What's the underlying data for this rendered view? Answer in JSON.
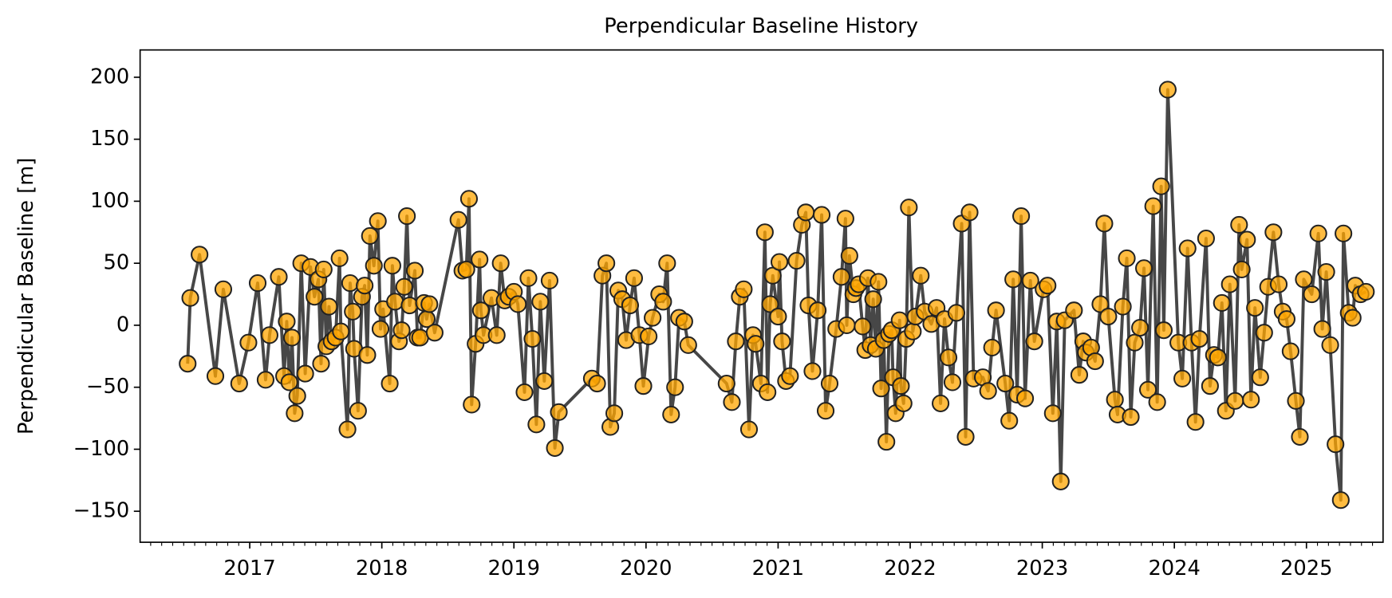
{
  "chart_data": {
    "type": "line",
    "title": "Perpendicular Baseline History",
    "ylabel": "Perpendicular Baseline [m]",
    "line_color": "#333333",
    "marker_color": "#ffa500",
    "marker_edge_color": "#222222",
    "xlim": [
      2016.17,
      2025.58
    ],
    "xticks": [
      2017,
      2018,
      2019,
      2020,
      2021,
      2022,
      2023,
      2024,
      2025
    ],
    "ylim": [
      -175,
      222
    ],
    "yticks": [
      {
        "value": -150,
        "label": "−150"
      },
      {
        "value": -100,
        "label": "−100"
      },
      {
        "value": -50,
        "label": "−50"
      },
      0,
      50,
      100,
      150,
      200
    ],
    "grid": false,
    "x": [
      2016.53,
      2016.55,
      2016.62,
      2016.74,
      2016.8,
      2016.92,
      2016.99,
      2017.06,
      2017.12,
      2017.15,
      2017.22,
      2017.26,
      2017.28,
      2017.3,
      2017.32,
      2017.34,
      2017.36,
      2017.39,
      2017.42,
      2017.46,
      2017.49,
      2017.52,
      2017.54,
      2017.56,
      2017.58,
      2017.6,
      2017.62,
      2017.65,
      2017.68,
      2017.69,
      2017.74,
      2017.76,
      2017.78,
      2017.79,
      2017.82,
      2017.85,
      2017.87,
      2017.89,
      2017.91,
      2017.94,
      2017.97,
      2017.99,
      2018.01,
      2018.06,
      2018.08,
      2018.1,
      2018.13,
      2018.15,
      2018.17,
      2018.19,
      2018.21,
      2018.25,
      2018.27,
      2018.29,
      2018.32,
      2018.34,
      2018.36,
      2018.4,
      2018.58,
      2018.61,
      2018.64,
      2018.66,
      2018.68,
      2018.71,
      2018.74,
      2018.75,
      2018.77,
      2018.83,
      2018.87,
      2018.9,
      2018.93,
      2018.96,
      2019.0,
      2019.03,
      2019.08,
      2019.11,
      2019.14,
      2019.17,
      2019.2,
      2019.23,
      2019.27,
      2019.31,
      2019.34,
      2019.59,
      2019.63,
      2019.67,
      2019.7,
      2019.73,
      2019.76,
      2019.79,
      2019.82,
      2019.85,
      2019.88,
      2019.91,
      2019.95,
      2019.98,
      2020.02,
      2020.05,
      2020.1,
      2020.13,
      2020.16,
      2020.19,
      2020.22,
      2020.25,
      2020.29,
      2020.32,
      2020.61,
      2020.65,
      2020.68,
      2020.71,
      2020.74,
      2020.78,
      2020.81,
      2020.83,
      2020.87,
      2020.9,
      2020.92,
      2020.94,
      2020.96,
      2021.0,
      2021.01,
      2021.03,
      2021.06,
      2021.09,
      2021.14,
      2021.18,
      2021.21,
      2021.23,
      2021.26,
      2021.3,
      2021.33,
      2021.36,
      2021.39,
      2021.44,
      2021.48,
      2021.51,
      2021.52,
      2021.54,
      2021.57,
      2021.59,
      2021.61,
      2021.64,
      2021.66,
      2021.68,
      2021.7,
      2021.72,
      2021.74,
      2021.76,
      2021.78,
      2021.8,
      2021.82,
      2021.84,
      2021.86,
      2021.87,
      2021.89,
      2021.92,
      2021.93,
      2021.95,
      2021.97,
      2021.99,
      2022.02,
      2022.04,
      2022.08,
      2022.11,
      2022.16,
      2022.2,
      2022.23,
      2022.26,
      2022.29,
      2022.32,
      2022.35,
      2022.39,
      2022.42,
      2022.45,
      2022.48,
      2022.55,
      2022.59,
      2022.62,
      2022.65,
      2022.72,
      2022.75,
      2022.78,
      2022.81,
      2022.84,
      2022.87,
      2022.91,
      2022.94,
      2023.01,
      2023.04,
      2023.08,
      2023.11,
      2023.14,
      2023.17,
      2023.24,
      2023.28,
      2023.31,
      2023.33,
      2023.37,
      2023.4,
      2023.44,
      2023.47,
      2023.5,
      2023.55,
      2023.57,
      2023.61,
      2023.64,
      2023.67,
      2023.7,
      2023.74,
      2023.77,
      2023.8,
      2023.84,
      2023.87,
      2023.9,
      2023.92,
      2023.95,
      2024.03,
      2024.06,
      2024.1,
      2024.13,
      2024.16,
      2024.19,
      2024.24,
      2024.27,
      2024.3,
      2024.33,
      2024.36,
      2024.39,
      2024.42,
      2024.46,
      2024.49,
      2024.51,
      2024.55,
      2024.58,
      2024.61,
      2024.65,
      2024.68,
      2024.71,
      2024.75,
      2024.79,
      2024.82,
      2024.85,
      2024.88,
      2024.92,
      2024.95,
      2024.98,
      2025.04,
      2025.09,
      2025.12,
      2025.15,
      2025.18,
      2025.22,
      2025.26,
      2025.28,
      2025.32,
      2025.35,
      2025.37,
      2025.41,
      2025.45
    ],
    "values": [
      -31,
      22,
      57,
      -41,
      29,
      -47,
      -14,
      34,
      -44,
      -8,
      39,
      -41,
      3,
      -46,
      -10,
      -71,
      -57,
      50,
      -39,
      47,
      23,
      37,
      -31,
      45,
      -17,
      15,
      -13,
      -10,
      54,
      -5,
      -84,
      34,
      11,
      -19,
      -69,
      23,
      32,
      -24,
      72,
      48,
      84,
      -3,
      13,
      -47,
      48,
      19,
      -13,
      -4,
      31,
      88,
      16,
      44,
      -10,
      -10,
      18,
      5,
      17,
      -6,
      85,
      44,
      45,
      102,
      -64,
      -15,
      53,
      12,
      -8,
      22,
      -8,
      50,
      20,
      23,
      27,
      17,
      -54,
      38,
      -11,
      -80,
      19,
      -45,
      36,
      -99,
      -70,
      -43,
      -47,
      40,
      50,
      -82,
      -71,
      28,
      21,
      -12,
      16,
      38,
      -8,
      -49,
      -9,
      6,
      25,
      19,
      50,
      -72,
      -50,
      6,
      3,
      -16,
      -47,
      -62,
      -13,
      23,
      29,
      -84,
      -8,
      -15,
      -47,
      75,
      -54,
      17,
      40,
      7,
      51,
      -13,
      -45,
      -41,
      52,
      81,
      91,
      16,
      -37,
      12,
      89,
      -69,
      -47,
      -3,
      39,
      86,
      0,
      56,
      25,
      30,
      33,
      -1,
      -20,
      38,
      -16,
      21,
      -19,
      35,
      -51,
      -12,
      -94,
      -7,
      -4,
      -42,
      -71,
      4,
      -49,
      -63,
      -11,
      95,
      -5,
      7,
      40,
      11,
      1,
      14,
      -63,
      5,
      -26,
      -46,
      10,
      82,
      -90,
      91,
      -43,
      -42,
      -53,
      -18,
      12,
      -47,
      -77,
      37,
      -56,
      88,
      -59,
      36,
      -13,
      29,
      32,
      -71,
      3,
      -126,
      4,
      12,
      -40,
      -13,
      -22,
      -18,
      -29,
      17,
      82,
      7,
      -60,
      -72,
      15,
      54,
      -74,
      -14,
      -2,
      46,
      -52,
      96,
      -62,
      112,
      -4,
      190,
      -14,
      -43,
      62,
      -14,
      -78,
      -11,
      70,
      -49,
      -24,
      -26,
      18,
      -69,
      33,
      -61,
      81,
      45,
      69,
      -60,
      14,
      -42,
      -6,
      31,
      75,
      33,
      11,
      5,
      -21,
      -61,
      -90,
      37,
      25,
      74,
      -3,
      43,
      -16,
      -96,
      -141,
      74,
      10,
      6,
      32,
      25,
      27
    ]
  }
}
